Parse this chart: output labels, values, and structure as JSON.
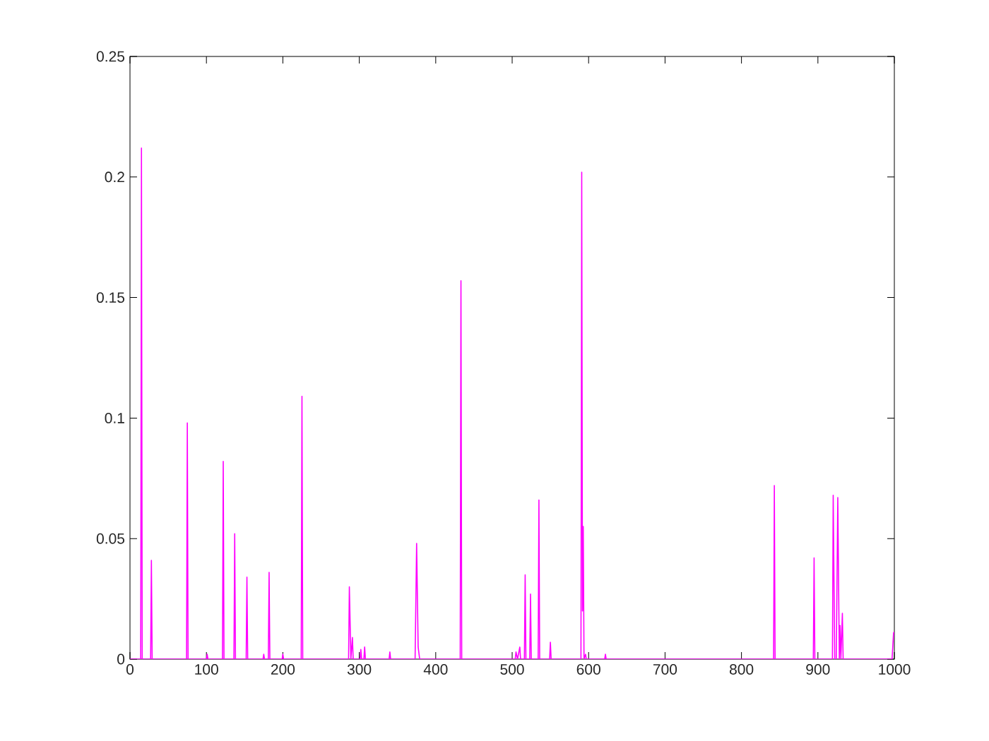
{
  "chart_data": {
    "type": "line",
    "xlim": [
      0,
      1000
    ],
    "ylim": [
      0,
      0.25
    ],
    "xticks": [
      0,
      100,
      200,
      300,
      400,
      500,
      600,
      700,
      800,
      900,
      1000
    ],
    "yticks": [
      0,
      0.05,
      0.1,
      0.15,
      0.2,
      0.25
    ],
    "grid": false,
    "marker": "none",
    "line_style": "solid",
    "series": [
      {
        "color": "#ff00ff",
        "x": [
          0,
          14,
          15,
          16,
          27,
          28,
          29,
          74,
          75,
          76,
          100,
          101,
          102,
          121,
          122,
          123,
          136,
          137,
          138,
          152,
          153,
          154,
          174,
          175,
          176,
          181,
          182,
          183,
          199,
          200,
          201,
          224,
          225,
          226,
          286,
          287,
          289,
          291,
          292,
          301,
          302,
          303,
          306,
          307,
          308,
          339,
          340,
          341,
          373,
          375,
          377,
          379,
          432,
          433,
          434,
          504,
          505,
          507,
          510,
          511,
          516,
          517,
          518,
          523,
          524,
          525,
          534,
          535,
          536,
          549,
          550,
          551,
          590,
          591,
          592,
          593,
          594,
          596,
          597,
          621,
          622,
          623,
          842,
          843,
          844,
          894,
          895,
          896,
          919,
          920,
          922,
          924,
          926,
          928,
          929,
          930,
          932,
          933,
          997,
          999,
          1000
        ],
        "values": [
          0,
          0,
          0.212,
          0,
          0,
          0.041,
          0,
          0,
          0.098,
          0,
          0,
          0.002,
          0,
          0,
          0.082,
          0,
          0,
          0.052,
          0,
          0,
          0.034,
          0,
          0,
          0.002,
          0,
          0,
          0.036,
          0,
          0,
          0.002,
          0,
          0,
          0.109,
          0,
          0,
          0.03,
          0,
          0.009,
          0,
          0,
          0.004,
          0,
          0,
          0.005,
          0,
          0,
          0.003,
          0,
          0,
          0.048,
          0.005,
          0,
          0,
          0.157,
          0,
          0,
          0.003,
          0,
          0.005,
          0,
          0,
          0.035,
          0,
          0,
          0.027,
          0,
          0,
          0.066,
          0,
          0,
          0.007,
          0,
          0,
          0.202,
          0.02,
          0.055,
          0,
          0.002,
          0,
          0,
          0.002,
          0,
          0,
          0.072,
          0,
          0,
          0.042,
          0,
          0,
          0.068,
          0,
          0,
          0.067,
          0,
          0.014,
          0,
          0.019,
          0,
          0,
          0.011,
          0.011
        ]
      }
    ]
  }
}
